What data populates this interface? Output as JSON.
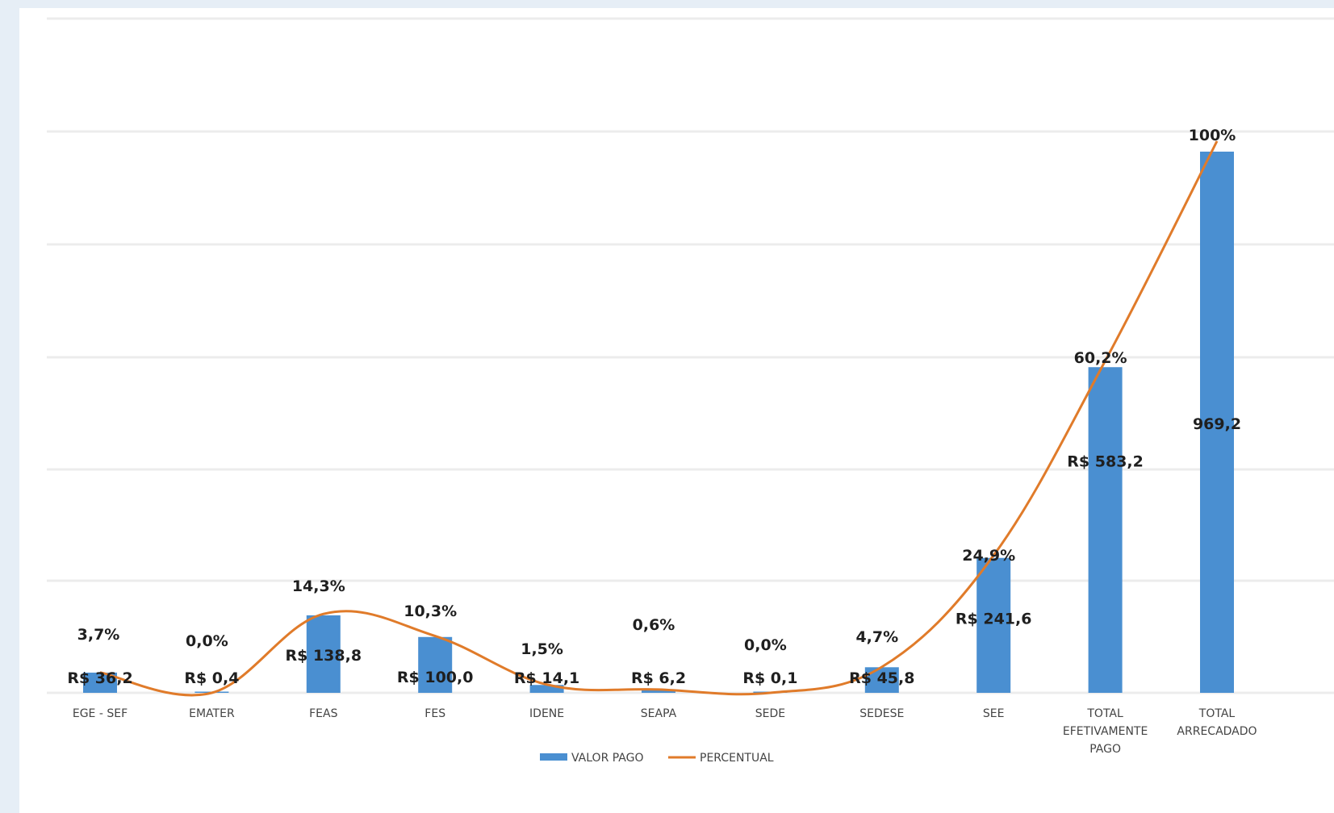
{
  "chart_data": {
    "type": "bar",
    "categories": [
      [
        "EGE - SEF"
      ],
      [
        "EMATER"
      ],
      [
        "FEAS"
      ],
      [
        "FES"
      ],
      [
        "IDENE"
      ],
      [
        "SEAPA"
      ],
      [
        "SEDE"
      ],
      [
        "SEDESE"
      ],
      [
        "SEE"
      ],
      [
        "TOTAL",
        "EFETIVAMENTE",
        "PAGO"
      ],
      [
        "TOTAL",
        "ARRECADADO"
      ]
    ],
    "series": [
      {
        "name": "VALOR PAGO",
        "type": "bar",
        "color": "#4a8fd1",
        "values": [
          36.2,
          0.4,
          138.8,
          100.0,
          14.1,
          6.2,
          0.1,
          45.8,
          241.6,
          583.2,
          969.2
        ],
        "labels": [
          "R$ 36,2",
          "R$ 0,4",
          "R$ 138,8",
          "R$ 100,0",
          "R$ 14,1",
          "R$ 6,2",
          "R$ 0,1",
          "R$ 45,8",
          "R$ 241,6",
          "R$ 583,2",
          "969,2"
        ]
      },
      {
        "name": "PERCENTUAL",
        "type": "line",
        "color": "#e07b2a",
        "values": [
          3.7,
          0.0,
          14.3,
          10.3,
          1.5,
          0.6,
          0.0,
          4.7,
          24.9,
          60.2,
          100
        ],
        "labels": [
          "3,7%",
          "0,0%",
          "14,3%",
          "10,3%",
          "1,5%",
          "0,6%",
          "0,0%",
          "4,7%",
          "24,9%",
          "60,2%",
          "100%"
        ]
      }
    ],
    "legend_position": "bottom",
    "grid": true
  }
}
